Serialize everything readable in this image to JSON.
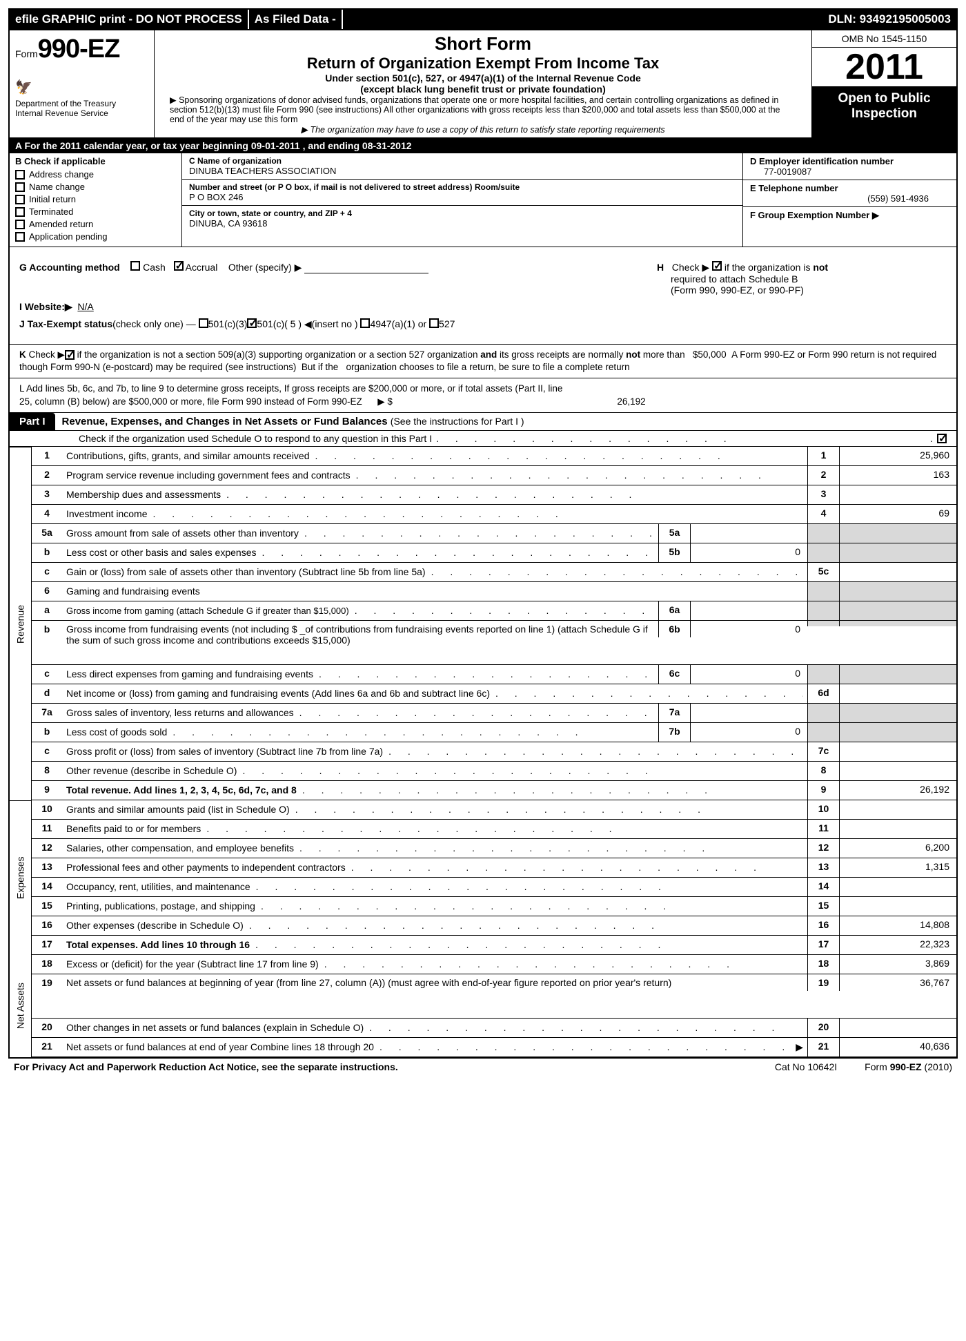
{
  "topbar": {
    "efile": "efile GRAPHIC print - DO NOT PROCESS",
    "asfiled": "As Filed Data -",
    "dln": "DLN: 93492195005003"
  },
  "header": {
    "form_prefix": "Form",
    "form_number": "990-EZ",
    "dept1": "Department of the Treasury",
    "dept2": "Internal Revenue Service",
    "short_form": "Short Form",
    "return_title": "Return of Organization Exempt From Income Tax",
    "under": "Under section 501(c), 527, or 4947(a)(1) of the Internal Revenue Code",
    "except": "(except black lung benefit trust or private foundation)",
    "fine1": "▶ Sponsoring organizations of donor advised funds, organizations that operate one or more hospital facilities, and certain controlling organizations as defined in section 512(b)(13) must file Form 990 (see instructions) All other organizations with gross receipts less than $200,000 and total assets less than $500,000 at the end of the year may use this form",
    "fine2": "▶ The organization may have to use a copy of this return to satisfy state reporting requirements",
    "omb": "OMB No 1545-1150",
    "year": "2011",
    "open_public": "Open to Public Inspection"
  },
  "row_a": {
    "prefix": "A  For the 2011 calendar year, or tax year beginning ",
    "begin": "09-01-2011",
    "mid": " , and ending ",
    "end": "08-31-2012"
  },
  "col_b": {
    "hdr": "B  Check if applicable",
    "items": [
      "Address change",
      "Name change",
      "Initial return",
      "Terminated",
      "Amended return",
      "Application pending"
    ]
  },
  "col_c": {
    "name_lbl": "C Name of organization",
    "name": "DINUBA TEACHERS ASSOCIATION",
    "street_lbl": "Number and street (or P O box, if mail is not delivered to street address) Room/suite",
    "street": "P O BOX 246",
    "city_lbl": "City or town, state or country, and ZIP + 4",
    "city": "DINUBA, CA  93618"
  },
  "col_def": {
    "d_lbl": "D Employer identification number",
    "d_val": "77-0019087",
    "e_lbl": "E Telephone number",
    "e_val": "(559) 591-4936",
    "f_lbl": "F Group Exemption Number   ▶"
  },
  "gh": {
    "g_lbl": "G Accounting method",
    "g_cash": "Cash",
    "g_accrual": "Accrual",
    "g_other": "Other (specify) ▶",
    "h_txt": "Check ▶  ☑  if the organization is not required to attach Schedule B (Form 990, 990-EZ, or 990-PF)",
    "h_pre": "H",
    "h_line1": "if the organization is ",
    "h_not": "not",
    "h_line2": "required to attach Schedule B",
    "h_line3": "(Form 990, 990-EZ, or 990-PF)"
  },
  "i": {
    "lbl": "I Website:▶",
    "val": "N/A"
  },
  "j": {
    "lbl": "J Tax-Exempt status",
    "paren": "(check only one) —",
    "o1": "501(c)(3)",
    "o2": "501(c)( 5 ) ◀(insert no )",
    "o3": "4947(a)(1) or",
    "o4": "527"
  },
  "k": "K Check ▶☑  if the organization is not a section 509(a)(3) supporting organization or a section 527 organization and its gross receipts are normally not more than   $50,000  A Form 990-EZ or Form 990 return is not required though Form 990-N (e-postcard) may be required (see instructions)  But if the   organization chooses to file a return, be sure to file a complete return",
  "l": {
    "text": "L Add lines 5b, 6c, and 7b, to line 9 to determine gross receipts, If gross receipts are $200,000 or more, or if total assets (Part II, line 25, column (B) below) are $500,000 or more,   file Form 990 instead of Form 990-EZ",
    "arrow": "▶ $",
    "val": "26,192"
  },
  "part1": {
    "badge": "Part I",
    "title": "Revenue, Expenses, and Changes in Net Assets or Fund Balances ",
    "sub": "(See the instructions for Part I )",
    "check_o": "Check if the organization used Schedule O to respond to any question in this Part I"
  },
  "side_labels": [
    "Revenue",
    "Expenses",
    "Net Assets"
  ],
  "rows": [
    {
      "ln": "1",
      "desc": "Contributions, gifts, grants, and similar amounts received",
      "end_lbl": "1",
      "end_val": "25,960"
    },
    {
      "ln": "2",
      "desc": "Program service revenue including government fees and contracts",
      "end_lbl": "2",
      "end_val": "163"
    },
    {
      "ln": "3",
      "desc": "Membership dues and assessments",
      "end_lbl": "3",
      "end_val": ""
    },
    {
      "ln": "4",
      "desc": "Investment income",
      "end_lbl": "4",
      "end_val": "69"
    },
    {
      "ln": "5a",
      "desc": "Gross amount from sale of assets other than inventory",
      "mid_lbl": "5a",
      "mid_val": "",
      "end_shade": true
    },
    {
      "ln": "b",
      "desc": "Less  cost or other basis and sales expenses",
      "mid_lbl": "5b",
      "mid_val": "0",
      "end_shade": true
    },
    {
      "ln": "c",
      "desc": "Gain or (loss) from sale of assets other than inventory (Subtract line 5b from line 5a)",
      "end_lbl": "5c",
      "end_val": ""
    },
    {
      "ln": "6",
      "desc": "Gaming and fundraising events",
      "end_shade": true,
      "noval": true
    },
    {
      "ln": "a",
      "desc": "Gross income from gaming (attach Schedule G if greater than $15,000)",
      "mid_lbl": "6a",
      "mid_val": "",
      "end_shade": true,
      "small": true
    },
    {
      "ln": "b",
      "desc": "Gross income from fundraising events (not including $ _of contributions from fundraising events reported on line 1) (attach Schedule G if the sum of such gross income and contributions exceeds $15,000)",
      "mid_lbl": "6b",
      "mid_val": "0",
      "end_shade": true,
      "tall": true
    },
    {
      "ln": "c",
      "desc": "Less  direct expenses from gaming and fundraising events",
      "mid_lbl": "6c",
      "mid_val": "0",
      "end_shade": true
    },
    {
      "ln": "d",
      "desc": "Net income or (loss) from gaming and fundraising events (Add lines 6a and 6b and subtract line 6c)",
      "end_lbl": "6d",
      "end_val": ""
    },
    {
      "ln": "7a",
      "desc": "Gross sales of inventory, less returns and allowances",
      "mid_lbl": "7a",
      "mid_val": "",
      "end_shade": true
    },
    {
      "ln": "b",
      "desc": "Less  cost of goods sold",
      "mid_lbl": "7b",
      "mid_val": "0",
      "end_shade": true
    },
    {
      "ln": "c",
      "desc": "Gross profit or (loss) from sales of inventory (Subtract line 7b from line 7a)",
      "end_lbl": "7c",
      "end_val": ""
    },
    {
      "ln": "8",
      "desc": "Other revenue (describe in Schedule O)",
      "end_lbl": "8",
      "end_val": ""
    },
    {
      "ln": "9",
      "desc": "Total revenue. Add lines 1, 2, 3, 4, 5c, 6d, 7c, and 8",
      "end_lbl": "9",
      "end_val": "26,192",
      "bold": true
    },
    {
      "ln": "10",
      "desc": "Grants and similar amounts paid (list in Schedule O)",
      "end_lbl": "10",
      "end_val": ""
    },
    {
      "ln": "11",
      "desc": "Benefits paid to or for members",
      "end_lbl": "11",
      "end_val": ""
    },
    {
      "ln": "12",
      "desc": "Salaries, other compensation, and employee benefits",
      "end_lbl": "12",
      "end_val": "6,200"
    },
    {
      "ln": "13",
      "desc": "Professional fees and other payments to independent contractors",
      "end_lbl": "13",
      "end_val": "1,315"
    },
    {
      "ln": "14",
      "desc": "Occupancy, rent, utilities, and maintenance",
      "end_lbl": "14",
      "end_val": ""
    },
    {
      "ln": "15",
      "desc": "Printing, publications, postage, and shipping",
      "end_lbl": "15",
      "end_val": ""
    },
    {
      "ln": "16",
      "desc": "Other expenses (describe in Schedule O)",
      "end_lbl": "16",
      "end_val": "14,808"
    },
    {
      "ln": "17",
      "desc": "Total expenses. Add lines 10 through 16",
      "end_lbl": "17",
      "end_val": "22,323",
      "bold": true
    },
    {
      "ln": "18",
      "desc": "Excess or (deficit) for the year (Subtract line 17 from line 9)",
      "end_lbl": "18",
      "end_val": "3,869"
    },
    {
      "ln": "19",
      "desc": "Net assets or fund balances at beginning of year (from line 27, column (A)) (must agree with end-of-year figure reported on prior year's return)",
      "end_lbl": "19",
      "end_val": "36,767",
      "tall": true
    },
    {
      "ln": "20",
      "desc": "Other changes in net assets or fund balances (explain in Schedule O)",
      "end_lbl": "20",
      "end_val": ""
    },
    {
      "ln": "21",
      "desc": "Net assets or fund balances at end of year  Combine lines 18 through 20",
      "end_lbl": "21",
      "end_val": "40,636",
      "arrow": true
    }
  ],
  "section_splits": {
    "revenue_end": 16,
    "expenses_end": 24
  },
  "footer": {
    "left": "For Privacy Act and Paperwork Reduction Act Notice, see the separate instructions.",
    "mid": "Cat No  10642I",
    "right_pre": "Form ",
    "right_b": "990-EZ",
    "right_post": " (2010)"
  },
  "colors": {
    "black": "#000000",
    "white": "#ffffff",
    "shade": "#d9d9d9"
  }
}
